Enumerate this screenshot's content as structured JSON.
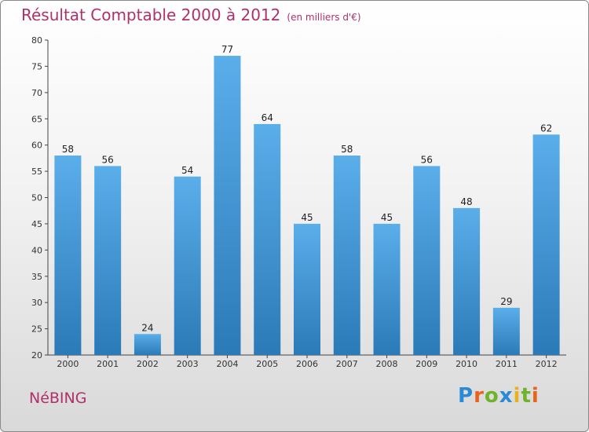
{
  "title": "Résultat Comptable 2000 à 2012",
  "subtitle": "(en milliers d'€)",
  "commune": "NéBING",
  "logo_letters": [
    "P",
    "r",
    "o",
    "x",
    "i",
    "t",
    "i"
  ],
  "colors": {
    "bar_top": "#5aaeea",
    "bar_bottom": "#2b7ab8",
    "title": "#b0306a"
  },
  "chart_data": {
    "type": "bar",
    "categories": [
      "2000",
      "2001",
      "2002",
      "2003",
      "2004",
      "2005",
      "2006",
      "2007",
      "2008",
      "2009",
      "2010",
      "2011",
      "2012"
    ],
    "values": [
      58,
      56,
      24,
      54,
      77,
      64,
      45,
      58,
      45,
      56,
      48,
      29,
      62
    ],
    "ylim": [
      20,
      80
    ],
    "yticks": [
      20,
      25,
      30,
      35,
      40,
      45,
      50,
      55,
      60,
      65,
      70,
      75,
      80
    ],
    "grid": false
  }
}
